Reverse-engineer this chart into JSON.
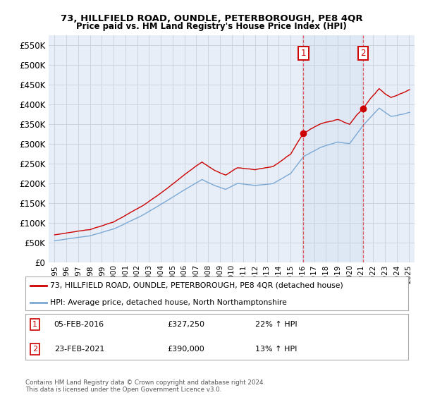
{
  "title": "73, HILLFIELD ROAD, OUNDLE, PETERBOROUGH, PE8 4QR",
  "subtitle": "Price paid vs. HM Land Registry's House Price Index (HPI)",
  "hpi_label": "HPI: Average price, detached house, North Northamptonshire",
  "property_label": "73, HILLFIELD ROAD, OUNDLE, PETERBOROUGH, PE8 4QR (detached house)",
  "sale1_date": "05-FEB-2016",
  "sale1_price": 327250,
  "sale1_pct": "22% ↑ HPI",
  "sale2_date": "23-FEB-2021",
  "sale2_price": 390000,
  "sale2_pct": "13% ↑ HPI",
  "sale1_year": 2016.09,
  "sale2_year": 2021.13,
  "ylim_min": 0,
  "ylim_max": 575000,
  "xlim_min": 1994.5,
  "xlim_max": 2025.5,
  "property_color": "#cc0000",
  "hpi_color": "#7aa8d4",
  "vline_color": "#dd4444",
  "background_color": "#ffffff",
  "plot_bg_color": "#e8eef8",
  "grid_color": "#c8d0dc",
  "shade_color": "#dde8f5",
  "footnote": "Contains HM Land Registry data © Crown copyright and database right 2024.\nThis data is licensed under the Open Government Licence v3.0."
}
